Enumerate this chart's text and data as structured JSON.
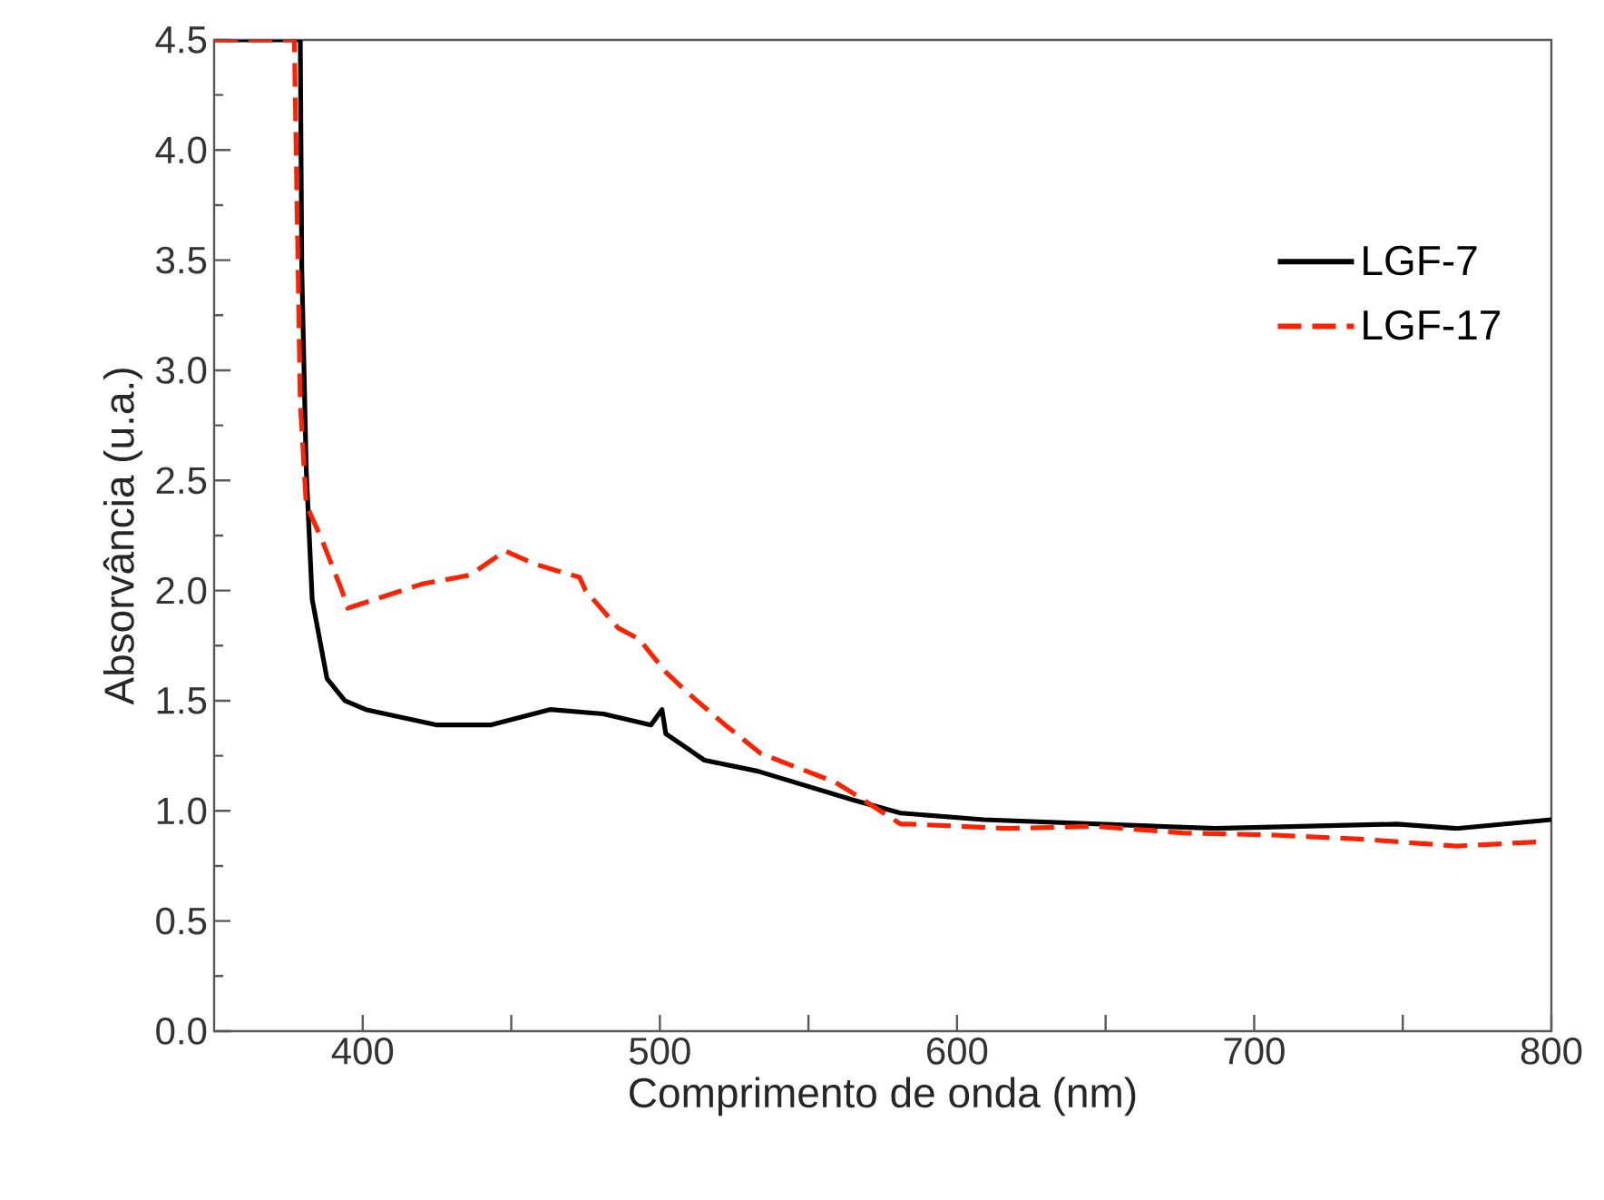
{
  "chart_data": {
    "type": "line",
    "xlabel": "Comprimento de onda (nm)",
    "ylabel": "Absorvância (u.a.)",
    "xlim": [
      350,
      800
    ],
    "ylim": [
      0,
      4.5
    ],
    "xticks": [
      400,
      {
        "value": 450,
        "label": null
      },
      500,
      {
        "value": 550,
        "label": null
      },
      600,
      {
        "value": 650,
        "label": null
      },
      700,
      {
        "value": 750,
        "label": null
      },
      800
    ],
    "yticks": [
      {
        "value": 0,
        "label": "0.0"
      },
      0.5,
      {
        "value": 1,
        "label": "1.0"
      },
      1.5,
      {
        "value": 2,
        "label": "2.0"
      },
      2.5,
      {
        "value": 3,
        "label": "3.0"
      },
      3.5,
      {
        "value": 4,
        "label": "4.0"
      },
      4.5
    ],
    "legend": "top right",
    "grid": false,
    "series": [
      {
        "name": "LGF-7",
        "color": "#000000",
        "line_style": "solid",
        "x": [
          350,
          379,
          379.5,
          381,
          383,
          388,
          394,
          401,
          425,
          443,
          463,
          481,
          497,
          500.7,
          502,
          515,
          533,
          565,
          581,
          609,
          687,
          748,
          768,
          800
        ],
        "values": [
          4.5,
          4.5,
          3.46,
          2.55,
          1.96,
          1.6,
          1.5,
          1.46,
          1.39,
          1.39,
          1.46,
          1.44,
          1.39,
          1.46,
          1.35,
          1.23,
          1.18,
          1.05,
          0.99,
          0.96,
          0.92,
          0.94,
          0.92,
          0.96
        ]
      },
      {
        "name": "LGF-17",
        "color": "#ff2200",
        "line_style": "dashed",
        "x": [
          350,
          377,
          379,
          381,
          386,
          393,
          395,
          404,
          420,
          436,
          448,
          458,
          473,
          475,
          486,
          493,
          502,
          509,
          522,
          534,
          559,
          565,
          581,
          584,
          617,
          646,
          676,
          707,
          738,
          768,
          797
        ],
        "values": [
          4.5,
          4.5,
          2.85,
          2.39,
          2.24,
          2.0,
          1.92,
          1.96,
          2.03,
          2.07,
          2.18,
          2.12,
          2.06,
          2.0,
          1.83,
          1.78,
          1.63,
          1.54,
          1.39,
          1.26,
          1.13,
          1.08,
          0.94,
          0.94,
          0.92,
          0.93,
          0.9,
          0.89,
          0.87,
          0.84,
          0.86
        ]
      }
    ]
  }
}
